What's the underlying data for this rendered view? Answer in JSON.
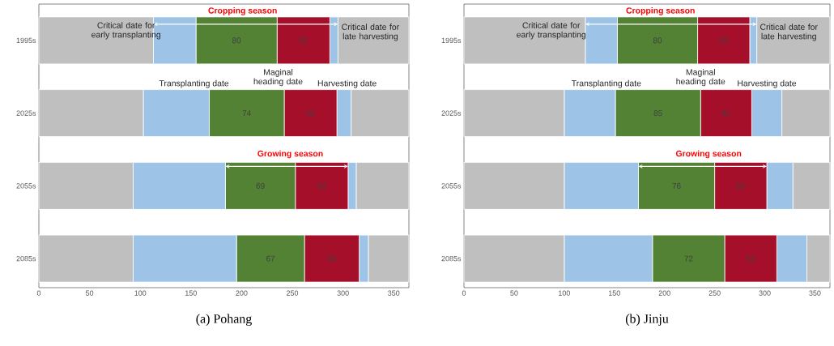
{
  "chart_data": [
    {
      "type": "bar",
      "orientation": "horizontal",
      "stacked": true,
      "title": "(a)  Pohang",
      "categories": [
        "1995s",
        "2025s",
        "2055s",
        "2085s"
      ],
      "xlim": [
        0,
        365
      ],
      "xticks": [
        0,
        50,
        100,
        150,
        200,
        250,
        300,
        350
      ],
      "series": [
        {
          "color": "#bfbfbf",
          "values": [
            113,
            103,
            93,
            93
          ],
          "value_labels": [
            null,
            null,
            null,
            null
          ]
        },
        {
          "color": "#9dc3e6",
          "values": [
            42,
            65,
            91,
            102
          ],
          "value_labels": [
            null,
            null,
            null,
            null
          ]
        },
        {
          "color": "#548235",
          "values": [
            80,
            74,
            69,
            67
          ],
          "value_labels": [
            "80",
            "74",
            "69",
            "67"
          ]
        },
        {
          "color": "#a50f2a",
          "values": [
            52,
            52,
            52,
            54
          ],
          "value_labels": [
            "52",
            "52",
            "52",
            "54"
          ]
        },
        {
          "color": "#9dc3e6",
          "values": [
            8,
            14,
            8,
            9
          ],
          "value_labels": [
            null,
            null,
            null,
            null
          ]
        },
        {
          "color": "#bfbfbf",
          "values": [
            70,
            57,
            52,
            40
          ],
          "value_labels": [
            null,
            null,
            null,
            null
          ]
        }
      ],
      "annotations": [
        "Cropping season",
        "Critical date for early transplanting",
        "Critical date for late harvesting",
        "Transplanting date",
        "Maginal heading date",
        "Harvesting date",
        "Growing season"
      ]
    },
    {
      "type": "bar",
      "orientation": "horizontal",
      "stacked": true,
      "title": "(b)  Jinju",
      "categories": [
        "1995s",
        "2025s",
        "2055s",
        "2085s"
      ],
      "xlim": [
        0,
        365
      ],
      "xticks": [
        0,
        50,
        100,
        150,
        200,
        250,
        300,
        350
      ],
      "series": [
        {
          "color": "#bfbfbf",
          "values": [
            121,
            100,
            100,
            100
          ],
          "value_labels": [
            null,
            null,
            null,
            null
          ]
        },
        {
          "color": "#9dc3e6",
          "values": [
            32,
            51,
            74,
            88
          ],
          "value_labels": [
            null,
            null,
            null,
            null
          ]
        },
        {
          "color": "#548235",
          "values": [
            80,
            85,
            76,
            72
          ],
          "value_labels": [
            "80",
            "85",
            "76",
            "72"
          ]
        },
        {
          "color": "#a50f2a",
          "values": [
            52,
            51,
            52,
            52
          ],
          "value_labels": [
            "52",
            "51",
            "52",
            "52"
          ]
        },
        {
          "color": "#9dc3e6",
          "values": [
            7,
            30,
            26,
            30
          ],
          "value_labels": [
            null,
            null,
            null,
            null
          ]
        },
        {
          "color": "#bfbfbf",
          "values": [
            73,
            48,
            37,
            23
          ],
          "value_labels": [
            null,
            null,
            null,
            null
          ]
        }
      ],
      "annotations": [
        "Cropping season",
        "Critical date for early transplanting",
        "Critical date for late harvesting",
        "Transplanting date",
        "Maginal heading date",
        "Harvesting date",
        "Growing season"
      ]
    }
  ]
}
